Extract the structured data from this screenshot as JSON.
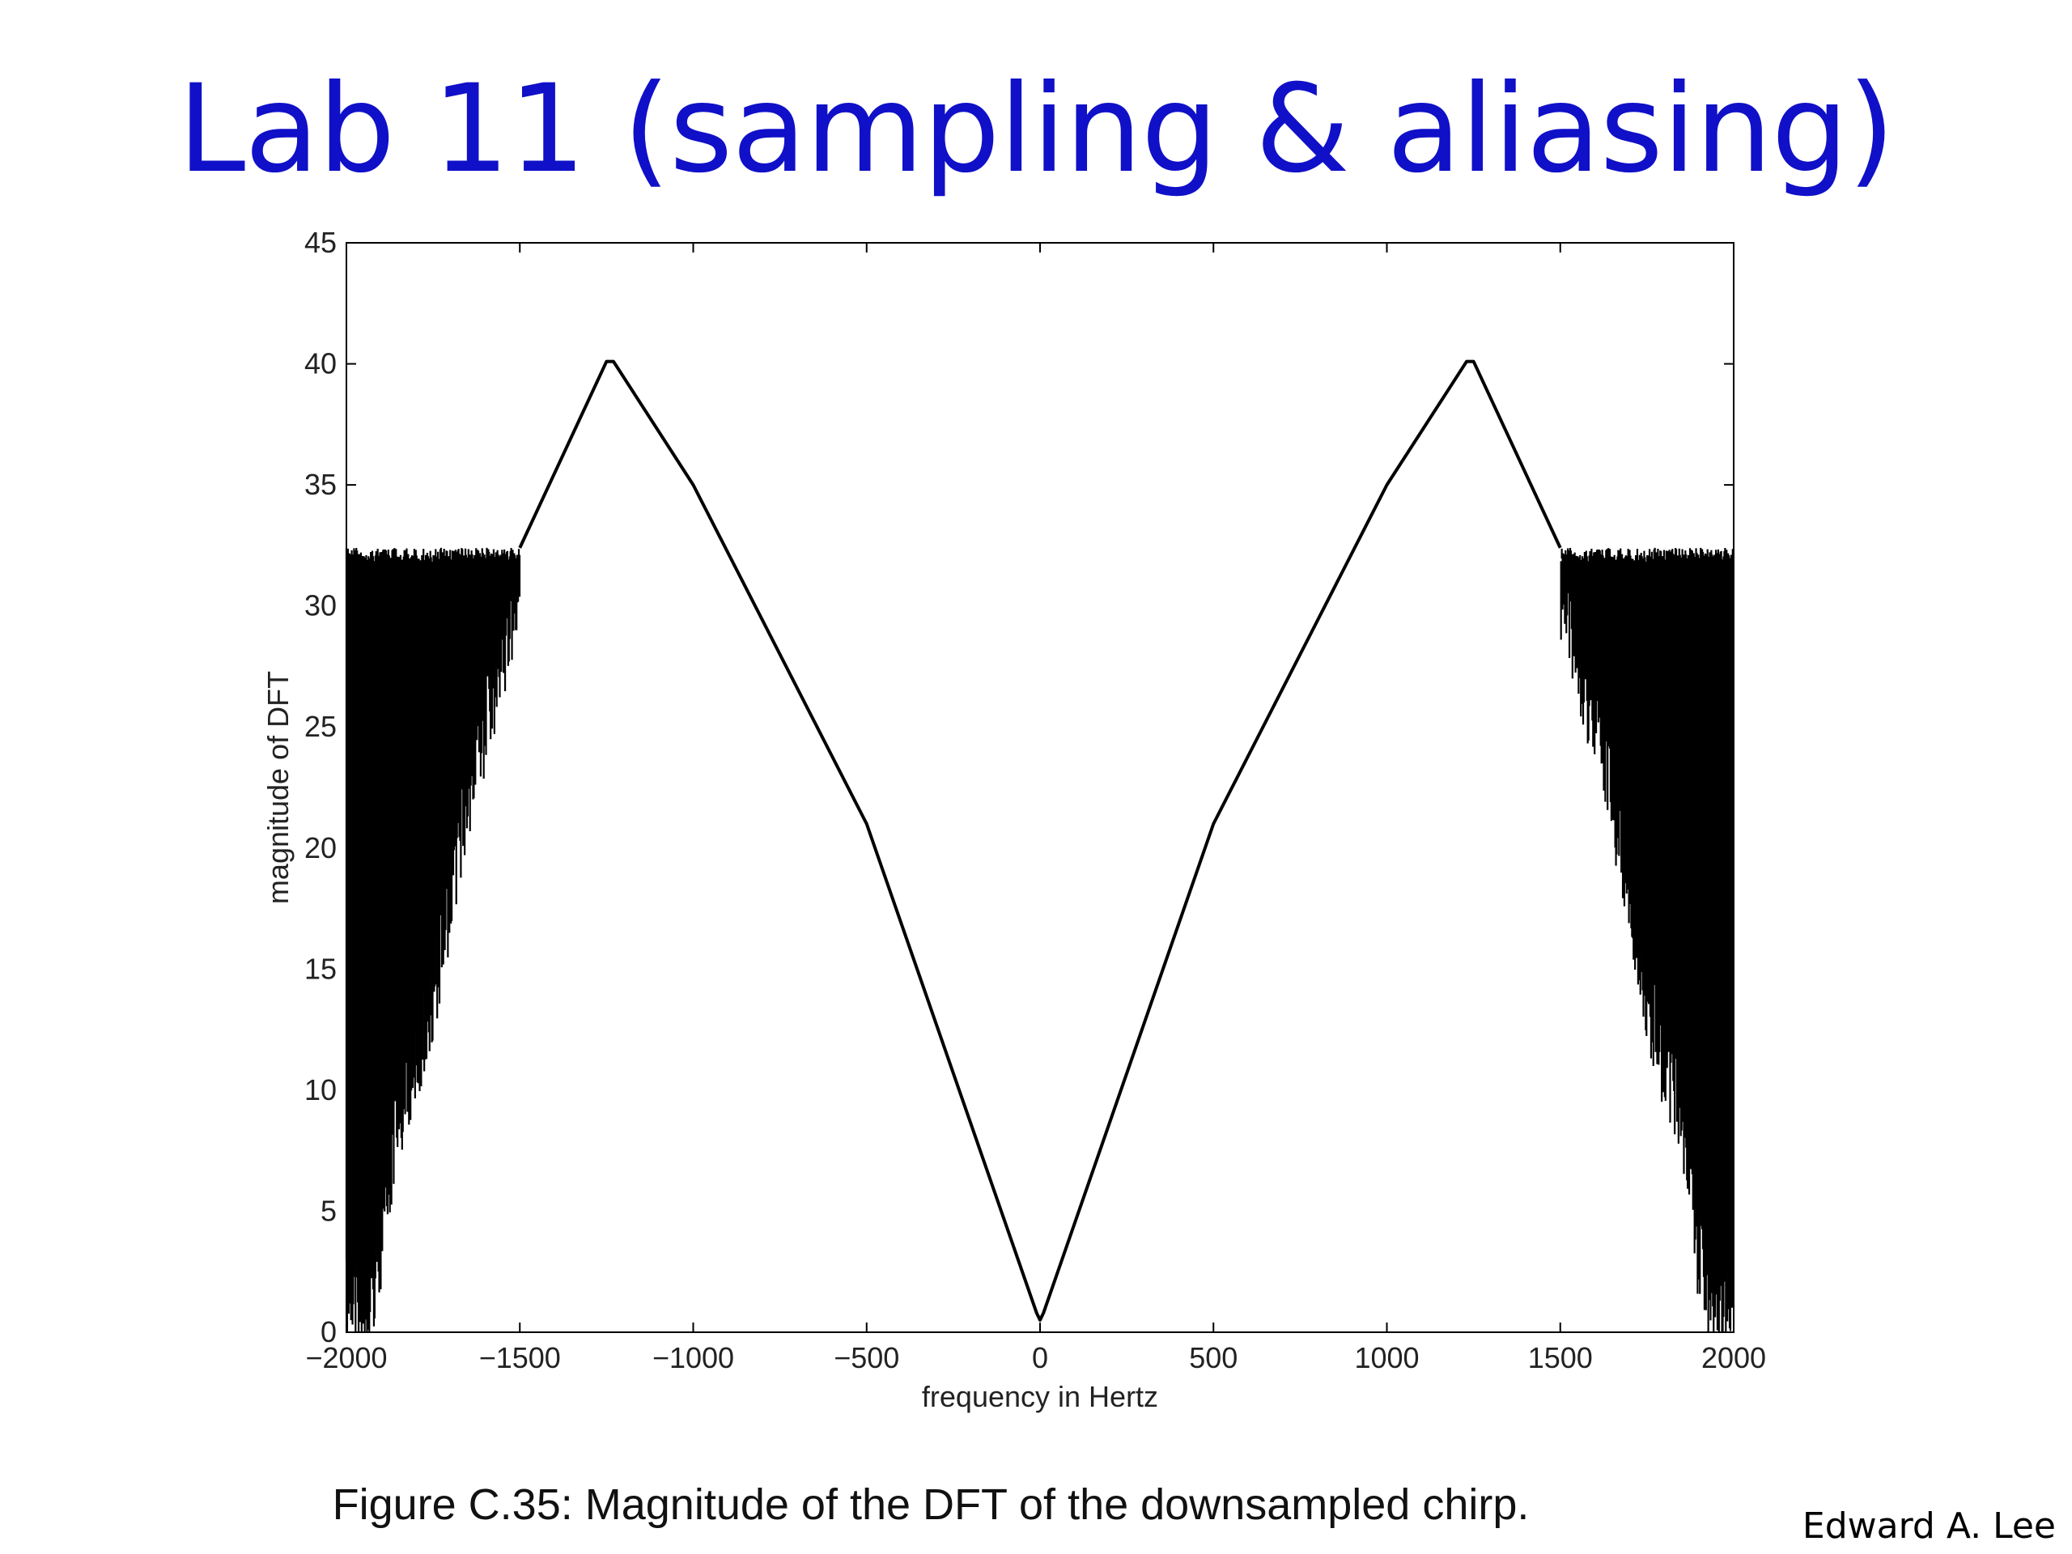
{
  "slide": {
    "title": "Lab 11 (sampling & aliasing)",
    "caption": "Figure C.35: Magnitude of the DFT of the downsampled chirp.",
    "author": "Edward A. Lee",
    "title_color": "#1010c8"
  },
  "chart_data": {
    "type": "line",
    "title": "",
    "xlabel": "frequency in Hertz",
    "ylabel": "magnitude of DFT",
    "xlim": [
      -2000,
      2000
    ],
    "ylim": [
      0,
      45
    ],
    "xticks": [
      -2000,
      -1500,
      -1000,
      -500,
      0,
      500,
      1000,
      1500,
      2000
    ],
    "xtick_labels": [
      "−2000",
      "−1500",
      "−1000",
      "−500",
      "0",
      "500",
      "1000",
      "1500",
      "2000"
    ],
    "yticks": [
      0,
      5,
      10,
      15,
      20,
      25,
      30,
      35,
      40,
      45
    ],
    "ytick_labels": [
      "0",
      "5",
      "10",
      "15",
      "20",
      "25",
      "30",
      "35",
      "40",
      "45"
    ],
    "grid": false,
    "series": [
      {
        "color": "#000000",
        "x": [
          -1500,
          -1250,
          -1230,
          -1000,
          -500,
          -10,
          0,
          10,
          500,
          1000,
          1230,
          1250,
          1500
        ],
        "y": [
          32.4,
          40.1,
          40.1,
          35.0,
          21.0,
          0.8,
          0.5,
          0.8,
          21.0,
          35.0,
          40.1,
          40.1,
          32.4
        ]
      }
    ],
    "oscillating_bands": [
      {
        "x_range": [
          -2000,
          -1500
        ],
        "upper": 32.4,
        "lower_envelope": {
          "x": [
            -1950,
            -1900,
            -1850,
            -1800,
            -1750,
            -1700,
            -1650,
            -1600,
            -1550,
            -1500
          ],
          "y": [
            3,
            5,
            11,
            13,
            16,
            20,
            24,
            27,
            30,
            32.4
          ]
        }
      },
      {
        "x_range": [
          1500,
          2000
        ],
        "upper": 32.4,
        "lower_envelope": {
          "x": [
            1500,
            1550,
            1600,
            1650,
            1700,
            1750,
            1800,
            1850,
            1900,
            1950
          ],
          "y": [
            32.4,
            30,
            27,
            24,
            20,
            16,
            13,
            11,
            5,
            3
          ]
        }
      }
    ]
  }
}
